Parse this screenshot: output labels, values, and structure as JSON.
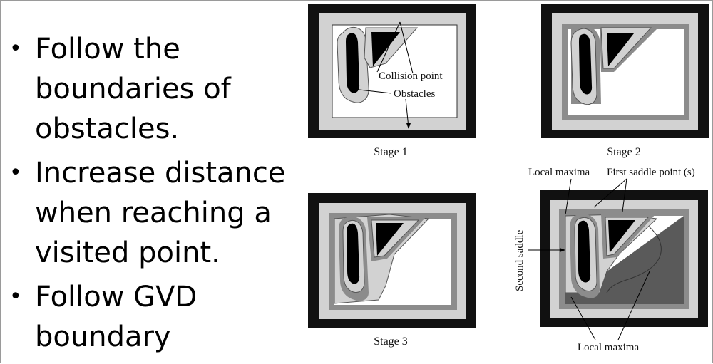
{
  "slide": {
    "bullets": [
      "Follow the boundaries of obstacles.",
      "Increase distance when reaching a visited point.",
      "Follow GVD boundary"
    ],
    "bullet_glyph": "•"
  },
  "figure": {
    "panels": [
      {
        "caption": "Stage 1",
        "annotations": [
          "Collision point",
          "Obstacles"
        ]
      },
      {
        "caption": "Stage 2",
        "annotations": []
      },
      {
        "caption": "Stage 3",
        "annotations": []
      },
      {
        "caption": "",
        "annotations": [
          "Local maxima",
          "First saddle point (s)",
          "Second saddle",
          "Local maxima"
        ]
      }
    ]
  },
  "colors": {
    "border_black": "#111111",
    "room_light": "#d2d2d2",
    "obstacle_outline": "#7d7d7d",
    "wave_mid": "#8c8c8c",
    "wave_dark": "#5a5a5a",
    "obstacle_fill": "#000000"
  }
}
